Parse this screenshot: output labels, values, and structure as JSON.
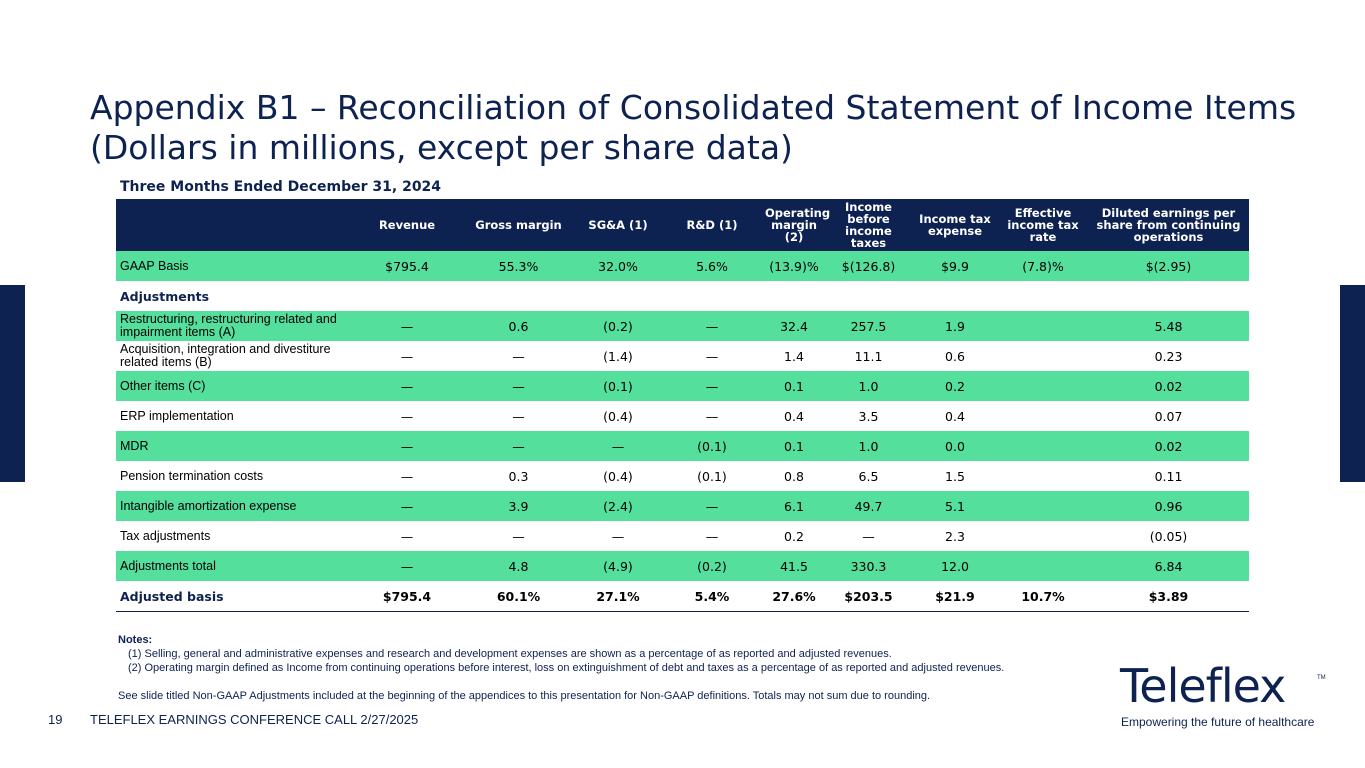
{
  "title_line1": "Appendix B1 – Reconciliation of Consolidated Statement of Income Items",
  "title_line2": "(Dollars in millions, except per share data)",
  "period": "Three Months Ended December 31, 2024",
  "columns": [
    "",
    "Revenue",
    "Gross margin",
    "SG&A (1)",
    "R&D (1)",
    "Operating margin (2)",
    "Income before income taxes",
    "Income tax expense",
    "Effective income tax rate",
    "Diluted earnings per share from continuing operations"
  ],
  "rows": [
    {
      "label": "GAAP Basis",
      "style": "band",
      "values": [
        "$795.4",
        "55.3%",
        "32.0%",
        "5.6%",
        "(13.9)%",
        "$(126.8)",
        "$9.9",
        "(7.8)%",
        "$(2.95)"
      ]
    },
    {
      "label": "Adjustments",
      "style": "adjhead",
      "values": [
        "",
        "",
        "",
        "",
        "",
        "",
        "",
        "",
        ""
      ]
    },
    {
      "label": "Restructuring, restructuring related and impairment items (A)",
      "style": "band",
      "values": [
        "—",
        "0.6",
        "(0.2)",
        "—",
        "32.4",
        "257.5",
        "1.9",
        "",
        "5.48"
      ]
    },
    {
      "label": "Acquisition, integration and divestiture related items (B)",
      "style": "plain",
      "values": [
        "—",
        "—",
        "(1.4)",
        "—",
        "1.4",
        "11.1",
        "0.6",
        "",
        "0.23"
      ]
    },
    {
      "label": "Other items (C)",
      "style": "band",
      "values": [
        "—",
        "—",
        "(0.1)",
        "—",
        "0.1",
        "1.0",
        "0.2",
        "",
        "0.02"
      ]
    },
    {
      "label": "ERP implementation",
      "style": "plain",
      "values": [
        "—",
        "—",
        "(0.4)",
        "—",
        "0.4",
        "3.5",
        "0.4",
        "",
        "0.07"
      ]
    },
    {
      "label": "MDR",
      "style": "band",
      "values": [
        "—",
        "—",
        "—",
        "(0.1)",
        "0.1",
        "1.0",
        "0.0",
        "",
        "0.02"
      ]
    },
    {
      "label": "Pension termination costs",
      "style": "plain",
      "values": [
        "—",
        "0.3",
        "(0.4)",
        "(0.1)",
        "0.8",
        "6.5",
        "1.5",
        "",
        "0.11"
      ]
    },
    {
      "label": "Intangible amortization expense",
      "style": "band",
      "values": [
        "—",
        "3.9",
        "(2.4)",
        "—",
        "6.1",
        "49.7",
        "5.1",
        "",
        "0.96"
      ]
    },
    {
      "label": "Tax adjustments",
      "style": "plain",
      "values": [
        "—",
        "—",
        "—",
        "—",
        "0.2",
        "—",
        "2.3",
        "",
        "(0.05)"
      ]
    },
    {
      "label": "Adjustments total",
      "style": "band",
      "values": [
        "—",
        "4.8",
        "(4.9)",
        "(0.2)",
        "41.5",
        "330.3",
        "12.0",
        "",
        "6.84"
      ]
    },
    {
      "label": "Adjusted basis",
      "style": "total",
      "values": [
        "$795.4",
        "60.1%",
        "27.1%",
        "5.4%",
        "27.6%",
        "$203.5",
        "$21.9",
        "10.7%",
        "$3.89"
      ]
    }
  ],
  "notes": {
    "heading": "Notes:",
    "items": [
      "(1) Selling, general and administrative expenses and research and development expenses are shown as a percentage of as reported and adjusted revenues.",
      "(2) Operating margin defined as Income from continuing operations before interest, loss on extinguishment of debt and taxes as a percentage of as reported and adjusted revenues."
    ],
    "disclaimer": "See slide titled Non-GAAP Adjustments included at the beginning of the appendices to this presentation for Non-GAAP definitions. Totals may not sum due to rounding."
  },
  "logo": {
    "wordmark": "Teleflex",
    "tm": "TM",
    "tagline": "Empowering the future of healthcare"
  },
  "footer": {
    "page_number": "19",
    "text": "TELEFLEX EARNINGS CONFERENCE CALL 2/27/2025"
  },
  "colors": {
    "navy": "#0d2251",
    "green_band": "#54df9d"
  }
}
